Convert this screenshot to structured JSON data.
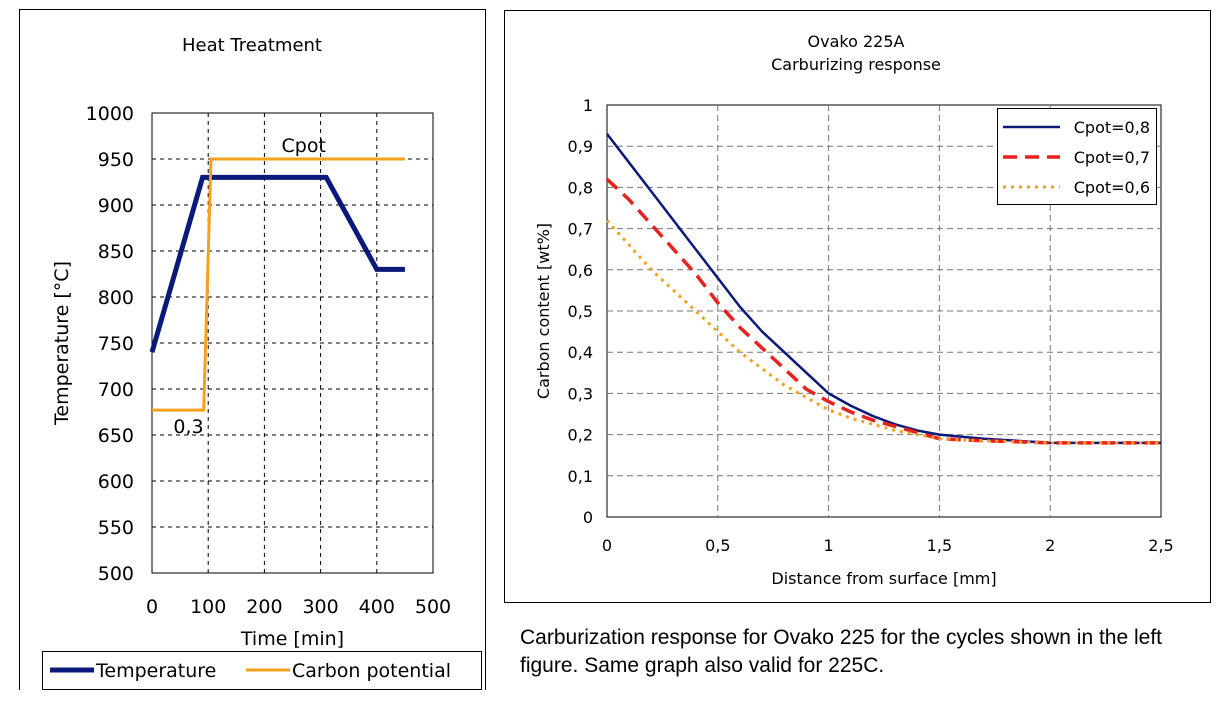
{
  "chart_data": [
    {
      "type": "line",
      "title": "Heat Treatment",
      "xlabel": "Time [min]",
      "ylabel": "Temperature [°C]",
      "xlim": [
        0,
        500
      ],
      "ylim": [
        500,
        1000
      ],
      "xticks": [
        "0",
        "100",
        "200",
        "300",
        "400",
        "500"
      ],
      "yticks": [
        "500",
        "550",
        "600",
        "650",
        "700",
        "750",
        "800",
        "850",
        "900",
        "950",
        "1000"
      ],
      "grid": true,
      "legend_position": "bottom",
      "series": [
        {
          "name": "Temperature",
          "color": "#0a1a7a",
          "x": [
            0,
            90,
            310,
            400,
            450
          ],
          "y": [
            740,
            930,
            930,
            830,
            830
          ]
        },
        {
          "name": "Carbon potential",
          "color": "#f5a01e",
          "x": [
            0,
            92,
            105,
            450
          ],
          "y": [
            677,
            677,
            950,
            950
          ]
        }
      ],
      "annotations": [
        {
          "text": "Cpot",
          "x": 270,
          "y": 965
        },
        {
          "text": "0,3",
          "x": 65,
          "y": 660
        }
      ]
    },
    {
      "type": "line",
      "title": "Ovako 225A",
      "subtitle": "Carburizing response",
      "xlabel": "Distance from surface [mm]",
      "ylabel": "Carbon content [wt%]",
      "xlim": [
        0,
        2.5
      ],
      "ylim": [
        0,
        1
      ],
      "xticks": [
        "0",
        "0,5",
        "1",
        "1,5",
        "2",
        "2,5"
      ],
      "yticks": [
        "0",
        "0,1",
        "0,2",
        "0,3",
        "0,4",
        "0,5",
        "0,6",
        "0,7",
        "0,8",
        "0,9",
        "1"
      ],
      "grid": true,
      "legend_position": "top-right",
      "series": [
        {
          "name": "Cpot=0,8",
          "color": "#0a1a7a",
          "style": "solid",
          "x": [
            0,
            0.1,
            0.2,
            0.3,
            0.4,
            0.5,
            0.6,
            0.7,
            0.8,
            0.9,
            1.0,
            1.1,
            1.2,
            1.3,
            1.4,
            1.5,
            1.7,
            2.0,
            2.5
          ],
          "y": [
            0.93,
            0.86,
            0.79,
            0.72,
            0.65,
            0.58,
            0.51,
            0.45,
            0.4,
            0.35,
            0.3,
            0.27,
            0.245,
            0.225,
            0.21,
            0.2,
            0.19,
            0.18,
            0.18
          ]
        },
        {
          "name": "Cpot=0,7",
          "color": "#e8201e",
          "style": "dashed",
          "x": [
            0,
            0.1,
            0.2,
            0.3,
            0.4,
            0.5,
            0.6,
            0.7,
            0.8,
            0.9,
            1.0,
            1.1,
            1.2,
            1.3,
            1.4,
            1.5,
            1.7,
            2.0,
            2.5
          ],
          "y": [
            0.82,
            0.77,
            0.71,
            0.65,
            0.59,
            0.52,
            0.46,
            0.41,
            0.36,
            0.31,
            0.28,
            0.255,
            0.235,
            0.22,
            0.205,
            0.19,
            0.185,
            0.18,
            0.18
          ]
        },
        {
          "name": "Cpot=0,6",
          "color": "#f5a01e",
          "style": "dotted",
          "x": [
            0,
            0.1,
            0.2,
            0.3,
            0.4,
            0.5,
            0.6,
            0.7,
            0.8,
            0.9,
            1.0,
            1.1,
            1.2,
            1.3,
            1.4,
            1.5,
            1.7,
            2.0,
            2.5
          ],
          "y": [
            0.72,
            0.66,
            0.6,
            0.55,
            0.5,
            0.45,
            0.4,
            0.36,
            0.32,
            0.29,
            0.26,
            0.24,
            0.225,
            0.21,
            0.2,
            0.19,
            0.185,
            0.18,
            0.18
          ]
        }
      ]
    }
  ],
  "caption": "Carburization response for Ovako 225 for the cycles shown in the left figure. Same graph also valid for 225C."
}
